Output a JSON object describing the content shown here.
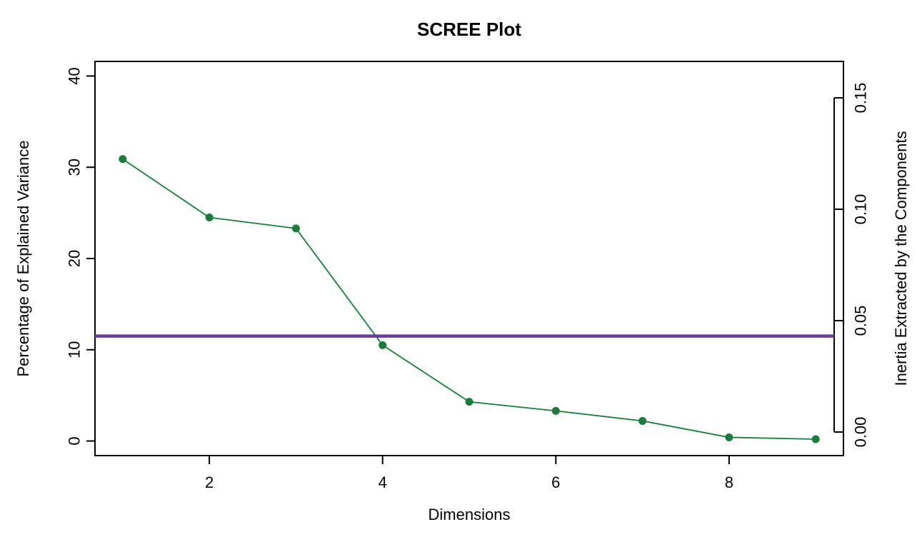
{
  "chart_data": {
    "type": "line",
    "title": "SCREE Plot",
    "xlabel": "Dimensions",
    "ylabel_left": "Percentage of Explained Variance",
    "ylabel_right": "Inertia Extracted by the Components",
    "x": [
      1,
      2,
      3,
      4,
      5,
      6,
      7,
      8,
      9
    ],
    "series": [
      {
        "name": "Percentage of Explained Variance",
        "color": "#1C7C3D",
        "marker": "filled-circle",
        "values": [
          30.9,
          24.5,
          23.3,
          10.5,
          4.3,
          3.3,
          2.2,
          0.4,
          0.2
        ]
      }
    ],
    "threshold_line": {
      "value_percent": 11.5,
      "value_inertia": 0.043,
      "color": "#6B3D99"
    },
    "axes": {
      "x_ticks": [
        2,
        4,
        6,
        8
      ],
      "x_range": [
        0.68,
        9.32
      ],
      "y_left_ticks": [
        0,
        10,
        20,
        30,
        40
      ],
      "y_left_range": [
        -1.6,
        41.6
      ],
      "y_right_ticks": [
        "0.00",
        "0.05",
        "0.10",
        "0.15"
      ],
      "y_right_max": 0.15,
      "grid": false,
      "legend": "none"
    }
  }
}
